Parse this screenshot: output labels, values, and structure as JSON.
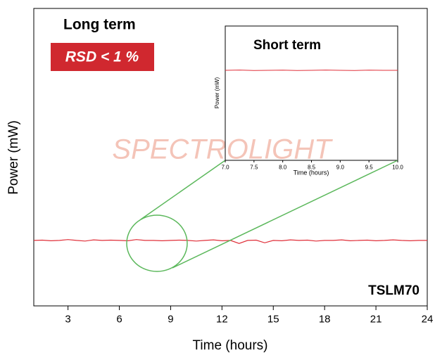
{
  "chart_data": [
    {
      "type": "line",
      "xlabel": "Time (hours)",
      "ylabel": "Power (mW)",
      "annotations": [
        "Long term",
        "RSD < 1 %",
        "SPECTROLIGHT",
        "TSLM70"
      ],
      "xlim": [
        1,
        24
      ],
      "xticks": [
        3,
        6,
        9,
        12,
        15,
        18,
        21,
        24
      ],
      "ylim": [
        0,
        100
      ],
      "color": "#e0303a",
      "x": [
        1,
        1.5,
        2,
        2.5,
        3,
        3.5,
        4,
        4.5,
        5,
        5.5,
        6,
        6.5,
        7,
        7.5,
        8,
        8.5,
        9,
        9.5,
        10,
        10.5,
        11,
        11.5,
        12,
        12.5,
        13,
        13.5,
        14,
        14.5,
        15,
        15.5,
        16,
        16.5,
        17,
        17.5,
        18,
        18.5,
        19,
        19.5,
        20,
        20.5,
        21,
        21.5,
        22,
        22.5,
        23,
        23.5,
        24
      ],
      "values": [
        22,
        22.1,
        21.9,
        22,
        22.3,
        22,
        21.8,
        22.2,
        22,
        22.1,
        22,
        21.9,
        22.3,
        22,
        22,
        21.9,
        22,
        22.1,
        22,
        21.8,
        22,
        22.2,
        21.9,
        22,
        21,
        22,
        22.1,
        21.2,
        22,
        21.9,
        22.2,
        22,
        22.1,
        21.8,
        22,
        22,
        22.2,
        21.9,
        22,
        22.1,
        21.9,
        22,
        22.2,
        22,
        21.9,
        22,
        22
      ]
    },
    {
      "type": "line",
      "title": "Short term",
      "xlabel": "Time (hours)",
      "ylabel": "Power (mW)",
      "xlim": [
        7,
        10
      ],
      "xticks": [
        {
          "value": 7,
          "label": "7.0"
        },
        {
          "value": 7.5,
          "label": "7.5"
        },
        {
          "value": 8,
          "label": "8.0"
        },
        {
          "value": 8.5,
          "label": "8.5"
        },
        {
          "value": 9,
          "label": "9.0"
        },
        {
          "value": 9.5,
          "label": "9.5"
        },
        {
          "value": 10,
          "label": "10.0"
        }
      ],
      "ylim": [
        0,
        100
      ],
      "color": "#e0303a",
      "x": [
        7,
        7.25,
        7.5,
        7.75,
        8,
        8.25,
        8.5,
        8.75,
        9,
        9.25,
        9.5,
        9.75,
        10
      ],
      "values": [
        67,
        67.2,
        66.9,
        67,
        67.1,
        66.9,
        67,
        67.2,
        67,
        66.9,
        67.1,
        67,
        67
      ]
    }
  ]
}
